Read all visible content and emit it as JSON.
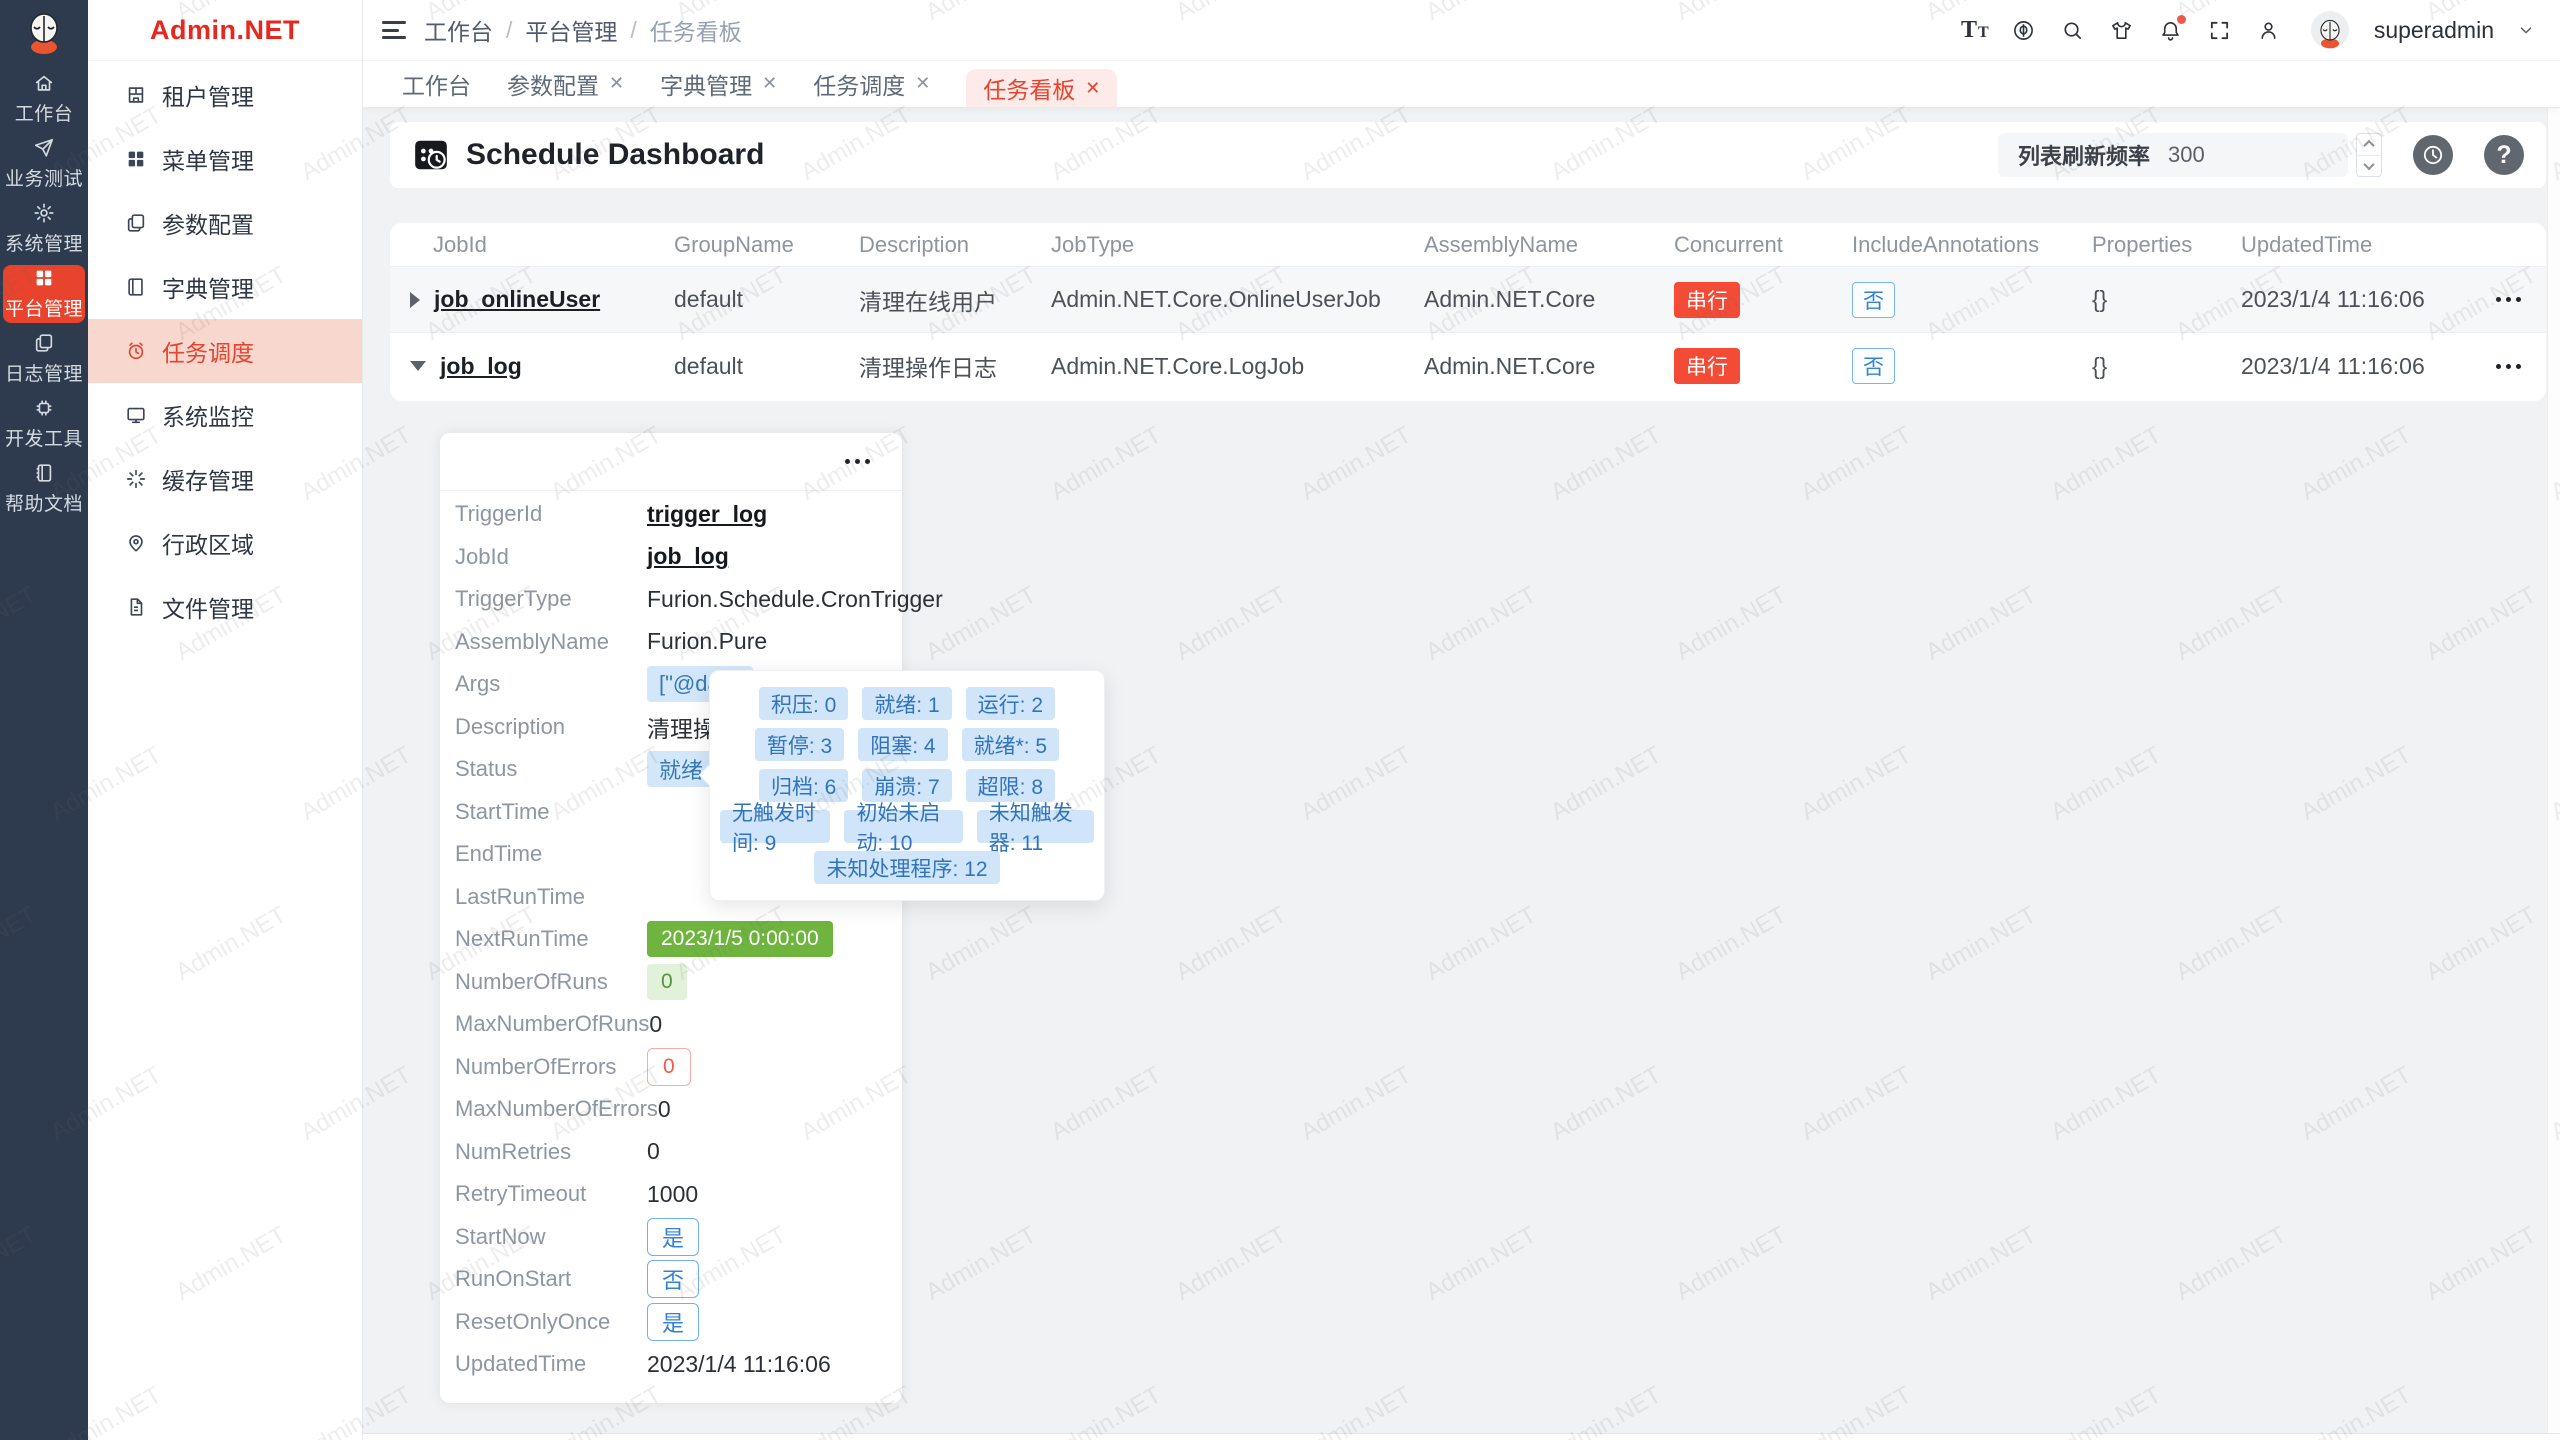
{
  "watermark": {
    "text": "Admin.NET"
  },
  "brand": {
    "name": "Admin.NET"
  },
  "colors": {
    "brand_red": "#e8432d",
    "rail_bg": "#2e3b4e",
    "menu_active_bg": "#f8d7ce",
    "badge_red": "#f34b35",
    "tag_blue_bg": "#d2e7f9",
    "tag_blue_text": "#3878b4",
    "tag_green": "#6eb43e",
    "tag_green_light_bg": "#e2f2da",
    "blue_outline": "#3282d6"
  },
  "rail": {
    "items": [
      {
        "label": "工作台",
        "icon": "home-icon"
      },
      {
        "label": "业务测试",
        "icon": "paper-plane-icon"
      },
      {
        "label": "系统管理",
        "icon": "gear-icon"
      },
      {
        "label": "平台管理",
        "icon": "grid-icon",
        "active": true
      },
      {
        "label": "日志管理",
        "icon": "copy-docs-icon"
      },
      {
        "label": "开发工具",
        "icon": "chip-icon"
      },
      {
        "label": "帮助文档",
        "icon": "notebook-icon"
      }
    ]
  },
  "sidebar": {
    "items": [
      {
        "label": "租户管理",
        "icon": "tenant-building-icon"
      },
      {
        "label": "菜单管理",
        "icon": "menu-grid-icon"
      },
      {
        "label": "参数配置",
        "icon": "params-copy-icon"
      },
      {
        "label": "字典管理",
        "icon": "dictionary-book-icon"
      },
      {
        "label": "任务调度",
        "icon": "alarm-clock-icon",
        "active": true
      },
      {
        "label": "系统监控",
        "icon": "monitor-icon"
      },
      {
        "label": "缓存管理",
        "icon": "cache-rays-icon"
      },
      {
        "label": "行政区域",
        "icon": "map-pin-icon"
      },
      {
        "label": "文件管理",
        "icon": "file-doc-icon"
      }
    ]
  },
  "topbar": {
    "breadcrumb": {
      "items": [
        "工作台",
        "平台管理",
        "任务看板"
      ],
      "separator": "/"
    },
    "font_icon_glyph": "T",
    "icons": [
      "font-size-icon",
      "language-icon",
      "search-icon",
      "theme-shirt-icon",
      "notification-bell-icon",
      "fullscreen-icon",
      "user-icon"
    ],
    "username": "superadmin"
  },
  "tabs": {
    "close_glyph": "✕",
    "items": [
      {
        "label": "工作台",
        "closable": false,
        "active": false
      },
      {
        "label": "参数配置",
        "closable": true,
        "active": false
      },
      {
        "label": "字典管理",
        "closable": true,
        "active": false
      },
      {
        "label": "任务调度",
        "closable": true,
        "active": false
      },
      {
        "label": "任务看板",
        "closable": true,
        "active": true
      }
    ]
  },
  "toolbar": {
    "title": "Schedule Dashboard",
    "refresh_label": "列表刷新频率",
    "refresh_value": "300",
    "help_glyph": "?"
  },
  "table": {
    "columns": [
      "JobId",
      "GroupName",
      "Description",
      "JobType",
      "AssemblyName",
      "Concurrent",
      "IncludeAnnotations",
      "Properties",
      "UpdatedTime"
    ],
    "rows": [
      {
        "job_id": "job_onlineUser",
        "group": "default",
        "description": "清理在线用户",
        "job_type": "Admin.NET.Core.OnlineUserJob",
        "assembly": "Admin.NET.Core",
        "concurrent": "串行",
        "include_annotations": "否",
        "properties": "{}",
        "updated": "2023/1/4 11:16:06",
        "expanded": false
      },
      {
        "job_id": "job_log",
        "group": "default",
        "description": "清理操作日志",
        "job_type": "Admin.NET.Core.LogJob",
        "assembly": "Admin.NET.Core",
        "concurrent": "串行",
        "include_annotations": "否",
        "properties": "{}",
        "updated": "2023/1/4 11:16:06",
        "expanded": true
      }
    ]
  },
  "detail": {
    "fields": [
      {
        "label": "TriggerId",
        "value": "trigger_log",
        "type": "link"
      },
      {
        "label": "JobId",
        "value": "job_log",
        "type": "link"
      },
      {
        "label": "TriggerType",
        "value": "Furion.Schedule.CronTrigger",
        "type": "text"
      },
      {
        "label": "AssemblyName",
        "value": "Furion.Pure",
        "type": "text"
      },
      {
        "label": "Args",
        "value": "[\"@daily",
        "type": "tag-blue"
      },
      {
        "label": "Description",
        "value": "清理操作",
        "type": "text"
      },
      {
        "label": "Status",
        "value": "就绪",
        "type": "tag-blue"
      },
      {
        "label": "StartTime",
        "value": "",
        "type": "text"
      },
      {
        "label": "EndTime",
        "value": "",
        "type": "text"
      },
      {
        "label": "LastRunTime",
        "value": "",
        "type": "text"
      },
      {
        "label": "NextRunTime",
        "value": "2023/1/5 0:00:00",
        "type": "tag-green"
      },
      {
        "label": "NumberOfRuns",
        "value": "0",
        "type": "tag-green-light"
      },
      {
        "label": "MaxNumberOfRuns",
        "value": "0",
        "type": "text"
      },
      {
        "label": "NumberOfErrors",
        "value": "0",
        "type": "tag-red-outline"
      },
      {
        "label": "MaxNumberOfErrors",
        "value": "0",
        "type": "text"
      },
      {
        "label": "NumRetries",
        "value": "0",
        "type": "text"
      },
      {
        "label": "RetryTimeout",
        "value": "1000",
        "type": "text"
      },
      {
        "label": "StartNow",
        "value": "是",
        "type": "tag-blue-outline"
      },
      {
        "label": "RunOnStart",
        "value": "否",
        "type": "tag-blue-outline"
      },
      {
        "label": "ResetOnlyOnce",
        "value": "是",
        "type": "tag-blue-outline"
      },
      {
        "label": "UpdatedTime",
        "value": "2023/1/4 11:16:06",
        "type": "text"
      }
    ]
  },
  "tooltip": {
    "rows": [
      [
        "积压: 0",
        "就绪: 1",
        "运行: 2"
      ],
      [
        "暂停: 3",
        "阻塞: 4",
        "就绪*: 5"
      ],
      [
        "归档: 6",
        "崩溃: 7",
        "超限: 8"
      ],
      [
        "无触发时间: 9",
        "初始未启动: 10",
        "未知触发器: 11"
      ],
      [
        "未知处理程序: 12"
      ]
    ]
  }
}
